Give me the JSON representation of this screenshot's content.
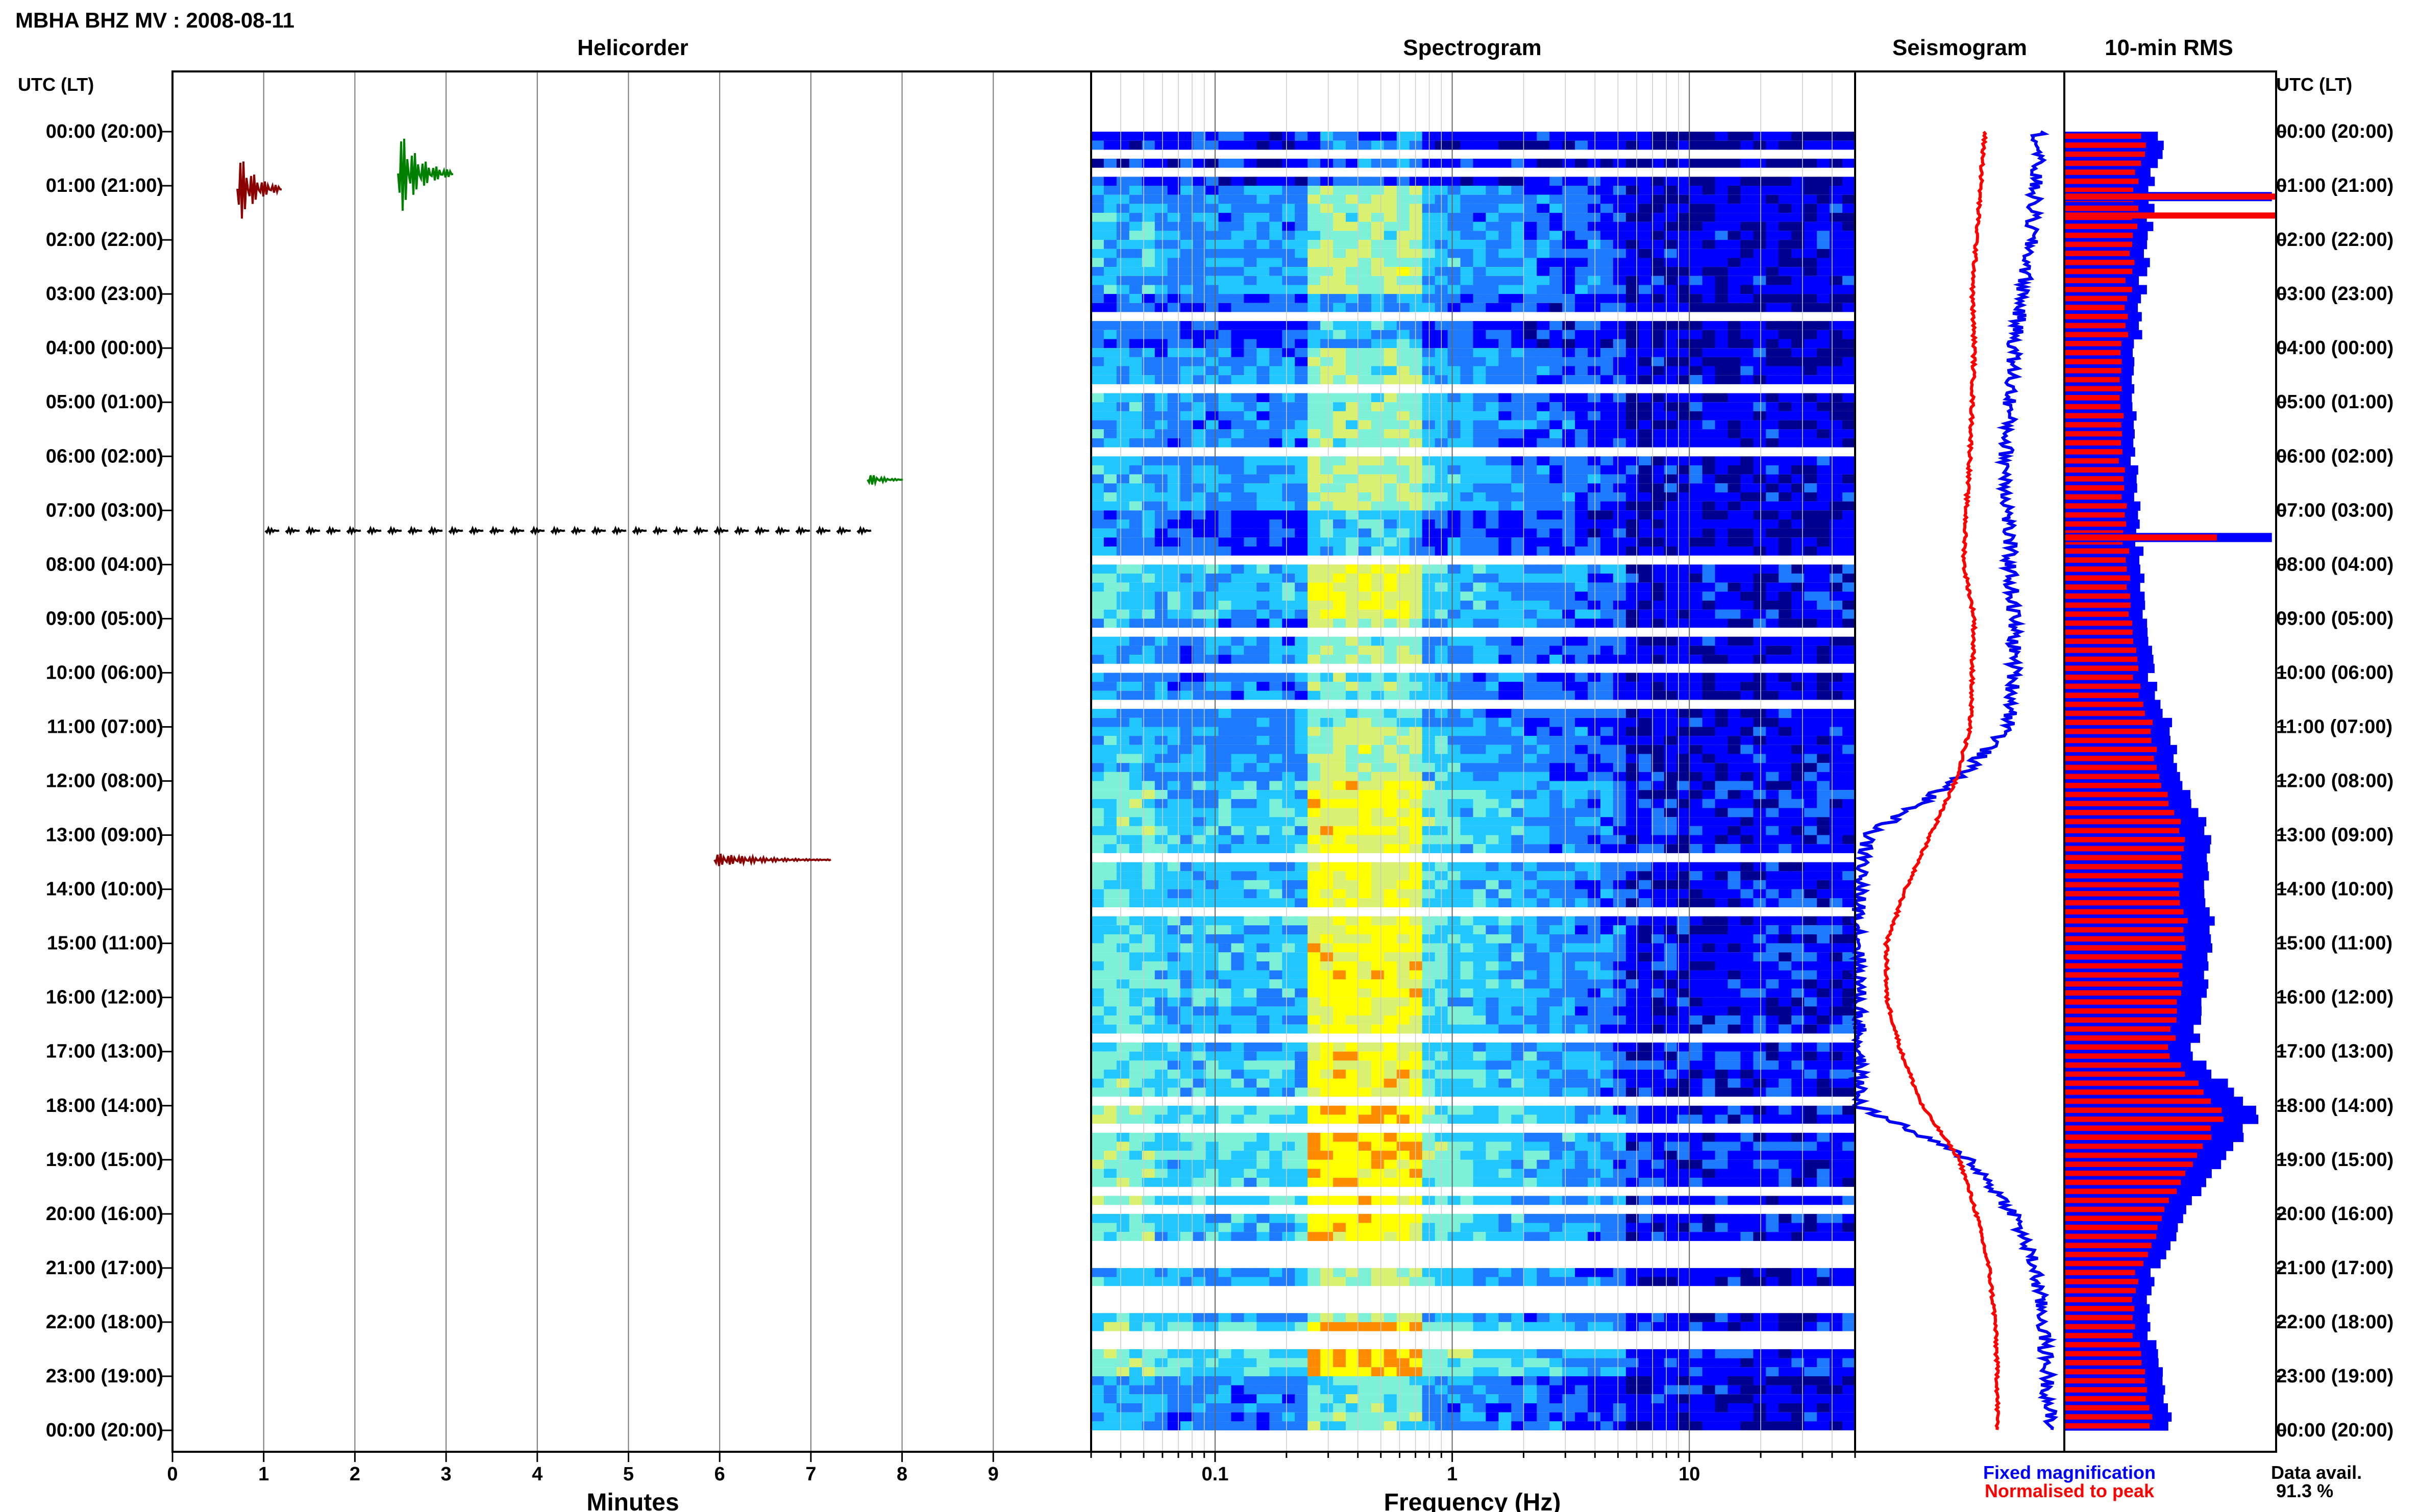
{
  "title": "MBHA BHZ MV : 2008-08-11",
  "colors": {
    "trace_cycle": [
      "#000000",
      "#8b0000",
      "#0000ff",
      "#008000"
    ],
    "fixed": "#0000ff",
    "normalised": "#ff0000",
    "spec_colormap": [
      "#00008f",
      "#0000ff",
      "#1e7bff",
      "#22c7ff",
      "#7df0d8",
      "#d9f070",
      "#ffff00",
      "#ff8c00"
    ]
  },
  "chart_data": [
    {
      "type": "line",
      "title": "Helicorder",
      "xlabel": "Minutes",
      "ylabel": "UTC (LT)",
      "xlim": [
        0,
        10
      ],
      "xticks": [
        0,
        1,
        2,
        3,
        4,
        5,
        6,
        7,
        8,
        9
      ],
      "lines_per_hour": 6,
      "hour_labels": [
        "00:00 (20:00)",
        "01:00 (21:00)",
        "02:00 (22:00)",
        "03:00 (23:00)",
        "04:00 (00:00)",
        "05:00 (01:00)",
        "06:00 (02:00)",
        "07:00 (03:00)",
        "08:00 (04:00)",
        "09:00 (05:00)",
        "10:00 (06:00)",
        "11:00 (07:00)",
        "12:00 (08:00)",
        "13:00 (09:00)",
        "14:00 (10:00)",
        "15:00 (11:00)",
        "16:00 (12:00)",
        "17:00 (13:00)",
        "18:00 (14:00)",
        "19:00 (15:00)",
        "20:00 (16:00)",
        "21:00 (17:00)",
        "22:00 (18:00)",
        "23:00 (19:00)",
        "00:00 (20:00)"
      ],
      "grid": true
    },
    {
      "type": "heatmap",
      "title": "Spectrogram",
      "xlabel": "Frequency (Hz)",
      "xscale": "log",
      "xlim": [
        0.03,
        50
      ],
      "xtick_labels": [
        "0.1",
        "1",
        "10"
      ],
      "xtick_values": [
        0.1,
        1,
        10
      ],
      "hour_activity": [
        0.25,
        0.55,
        0.6,
        0.35,
        0.55,
        0.55,
        0.6,
        0.4,
        0.7,
        0.55,
        0.5,
        0.6,
        0.75,
        0.7,
        0.7,
        0.75,
        0.7,
        0.75,
        0.85,
        0.8,
        0.75,
        0.6,
        0.85,
        0.5
      ]
    },
    {
      "type": "line",
      "title": "Seismogram",
      "series": [
        {
          "name": "Fixed magnification",
          "color": "#0000ff"
        },
        {
          "name": "Normalised to peak",
          "color": "#ff0000"
        }
      ],
      "hours": [
        0,
        1,
        2,
        3,
        4,
        5,
        6,
        7,
        8,
        9,
        10,
        11,
        12,
        13,
        14,
        15,
        16,
        17,
        18,
        19,
        20,
        21,
        22,
        23,
        24
      ],
      "fixed_position": [
        0.88,
        0.86,
        0.84,
        0.8,
        0.76,
        0.74,
        0.72,
        0.73,
        0.74,
        0.76,
        0.76,
        0.74,
        0.48,
        0.06,
        0.02,
        0.02,
        0.02,
        0.02,
        0.02,
        0.55,
        0.76,
        0.86,
        0.9,
        0.92,
        0.93
      ],
      "normalised_position": [
        0.62,
        0.6,
        0.58,
        0.56,
        0.57,
        0.56,
        0.55,
        0.53,
        0.52,
        0.57,
        0.56,
        0.55,
        0.48,
        0.36,
        0.24,
        0.15,
        0.15,
        0.22,
        0.32,
        0.5,
        0.58,
        0.64,
        0.67,
        0.68,
        0.68
      ]
    },
    {
      "type": "bar",
      "title": "10-min RMS",
      "orientation": "horizontal",
      "series": [
        {
          "name": "Fixed magnification",
          "color": "#0000ff"
        },
        {
          "name": "Normalised to peak",
          "color": "#ff0000"
        }
      ],
      "hours": [
        0,
        1,
        2,
        3,
        4,
        5,
        6,
        7,
        8,
        9,
        10,
        11,
        12,
        13,
        14,
        15,
        16,
        17,
        18,
        19,
        20,
        21,
        22,
        23,
        24
      ],
      "fixed_level": [
        0.45,
        0.42,
        0.4,
        0.36,
        0.34,
        0.34,
        0.33,
        0.34,
        0.36,
        0.4,
        0.42,
        0.5,
        0.58,
        0.7,
        0.68,
        0.7,
        0.66,
        0.6,
        0.92,
        0.75,
        0.55,
        0.42,
        0.4,
        0.48,
        0.52
      ],
      "red_fraction": 0.82,
      "spikes": [
        {
          "hour": 1.2,
          "fixed": 0.98,
          "normalised": 1.0
        },
        {
          "hour": 1.55,
          "fixed": 0.0,
          "normalised": 1.0
        },
        {
          "hour": 7.5,
          "fixed": 0.98,
          "normalised": 0.72
        }
      ]
    }
  ],
  "legend": {
    "fixed": "Fixed magnification",
    "normalised": "Normalised to peak"
  },
  "data_avail": {
    "label": "Data avail.",
    "value": "91.3 %"
  },
  "labels": {
    "right_axis": "UTC (LT)"
  }
}
